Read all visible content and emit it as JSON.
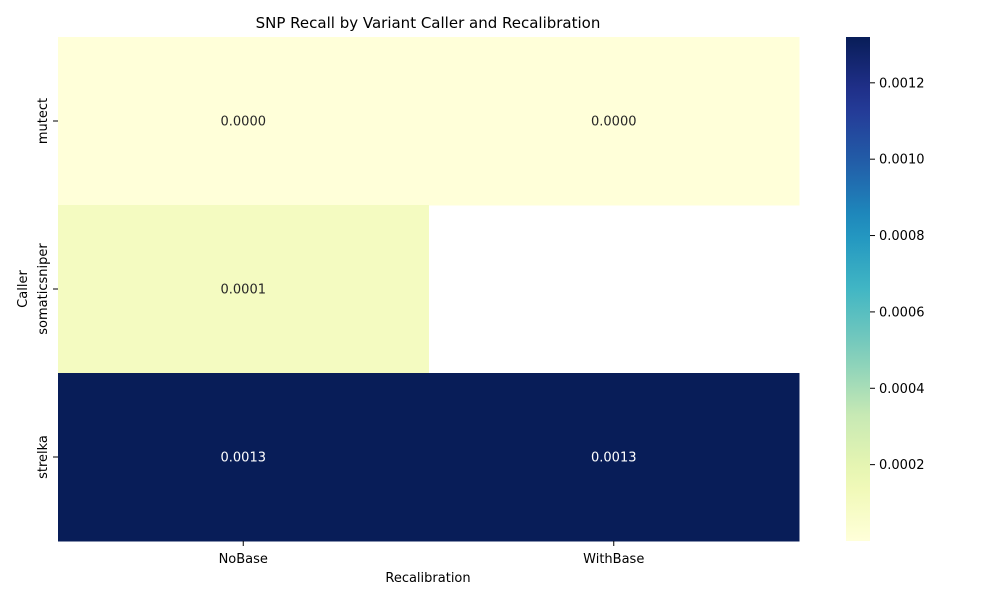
{
  "chart_data": {
    "type": "heatmap",
    "title": "SNP Recall by Variant Caller and Recalibration",
    "xlabel": "Recalibration",
    "ylabel": "Caller",
    "columns": [
      "NoBase",
      "WithBase"
    ],
    "rows": [
      "mutect",
      "somaticsniper",
      "strelka"
    ],
    "values": [
      [
        0.0,
        0.0
      ],
      [
        0.0001,
        null
      ],
      [
        0.00132,
        0.00132
      ]
    ],
    "cell_labels": [
      [
        "0.0000",
        "0.0000"
      ],
      [
        "0.0001",
        ""
      ],
      [
        "0.0013",
        "0.0013"
      ]
    ],
    "colormap": "YlGnBu",
    "colorbar": {
      "min": 0.0,
      "max": 0.00132,
      "ticks": [
        0.0002,
        0.0004,
        0.0006,
        0.0008,
        0.001,
        0.0012
      ],
      "tick_labels": [
        "0.0002",
        "0.0004",
        "0.0006",
        "0.0008",
        "0.0010",
        "0.0012"
      ]
    },
    "grid": false
  }
}
